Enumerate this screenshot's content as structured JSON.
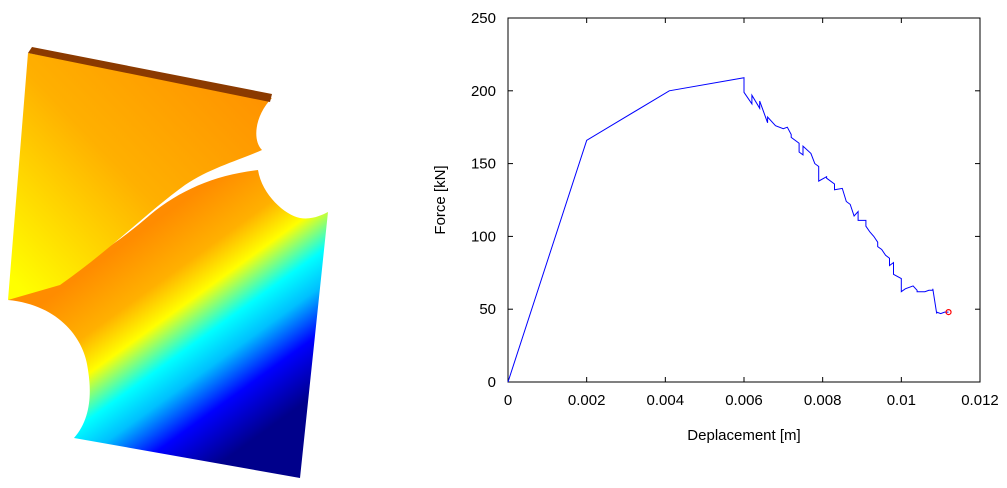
{
  "simulation": {
    "colormap": [
      "#00008b",
      "#0000ff",
      "#00bfff",
      "#00ffff",
      "#7fff7f",
      "#ffff00",
      "#ffb000",
      "#ff8c00"
    ],
    "edge_color": "#8b3a00"
  },
  "chart_data": {
    "type": "line",
    "xlabel": "Deplacement [m]",
    "ylabel": "Force [kN]",
    "xlim": [
      0,
      0.012
    ],
    "ylim": [
      0,
      250
    ],
    "xticks": [
      0,
      0.002,
      0.004,
      0.006,
      0.008,
      0.01,
      0.012
    ],
    "xtick_labels": [
      "0",
      "0.002",
      "0.004",
      "0.006",
      "0.008",
      "0.01",
      "0.012"
    ],
    "yticks": [
      0,
      50,
      100,
      150,
      200,
      250
    ],
    "ytick_labels": [
      "0",
      "50",
      "100",
      "150",
      "200",
      "250"
    ],
    "grid": false,
    "line_color": "#0000ff",
    "marker_color": "#ff0000",
    "series": [
      {
        "x": [
          0,
          0.002,
          0.0041,
          0.006,
          0.006,
          0.0062,
          0.0062,
          0.0064,
          0.0064,
          0.0066,
          0.0066,
          0.0068,
          0.0068,
          0.007,
          0.0071,
          0.0072,
          0.0072,
          0.0074,
          0.0074,
          0.0075,
          0.0075,
          0.0077,
          0.0078,
          0.0079,
          0.0079,
          0.0081,
          0.0081,
          0.0083,
          0.0083,
          0.0085,
          0.0086,
          0.0087,
          0.0088,
          0.0089,
          0.0089,
          0.0091,
          0.0091,
          0.0092,
          0.0093,
          0.0094,
          0.0094,
          0.0095,
          0.0096,
          0.0097,
          0.0097,
          0.0098,
          0.0098,
          0.01,
          0.01,
          0.0101,
          0.0101,
          0.0103,
          0.0104,
          0.0104,
          0.0106,
          0.0107,
          0.0108,
          0.0108,
          0.0109,
          0.0109,
          0.011,
          0.0111,
          0.0112
        ],
        "y": [
          0,
          166,
          200,
          209,
          199,
          191,
          197,
          188,
          193,
          178,
          182,
          176,
          176,
          174,
          175,
          170,
          168,
          164,
          158,
          156,
          162,
          157,
          150,
          148,
          138,
          141,
          140,
          136,
          132,
          133,
          124,
          122,
          114,
          117,
          111,
          111,
          107,
          103,
          100,
          96,
          93,
          91,
          87,
          85,
          80,
          82,
          74,
          71,
          62,
          64,
          64,
          66,
          63,
          62,
          62,
          63,
          63,
          64,
          47,
          48,
          47,
          48,
          48
        ]
      }
    ],
    "end_marker": {
      "x": 0.0112,
      "y": 48
    }
  }
}
